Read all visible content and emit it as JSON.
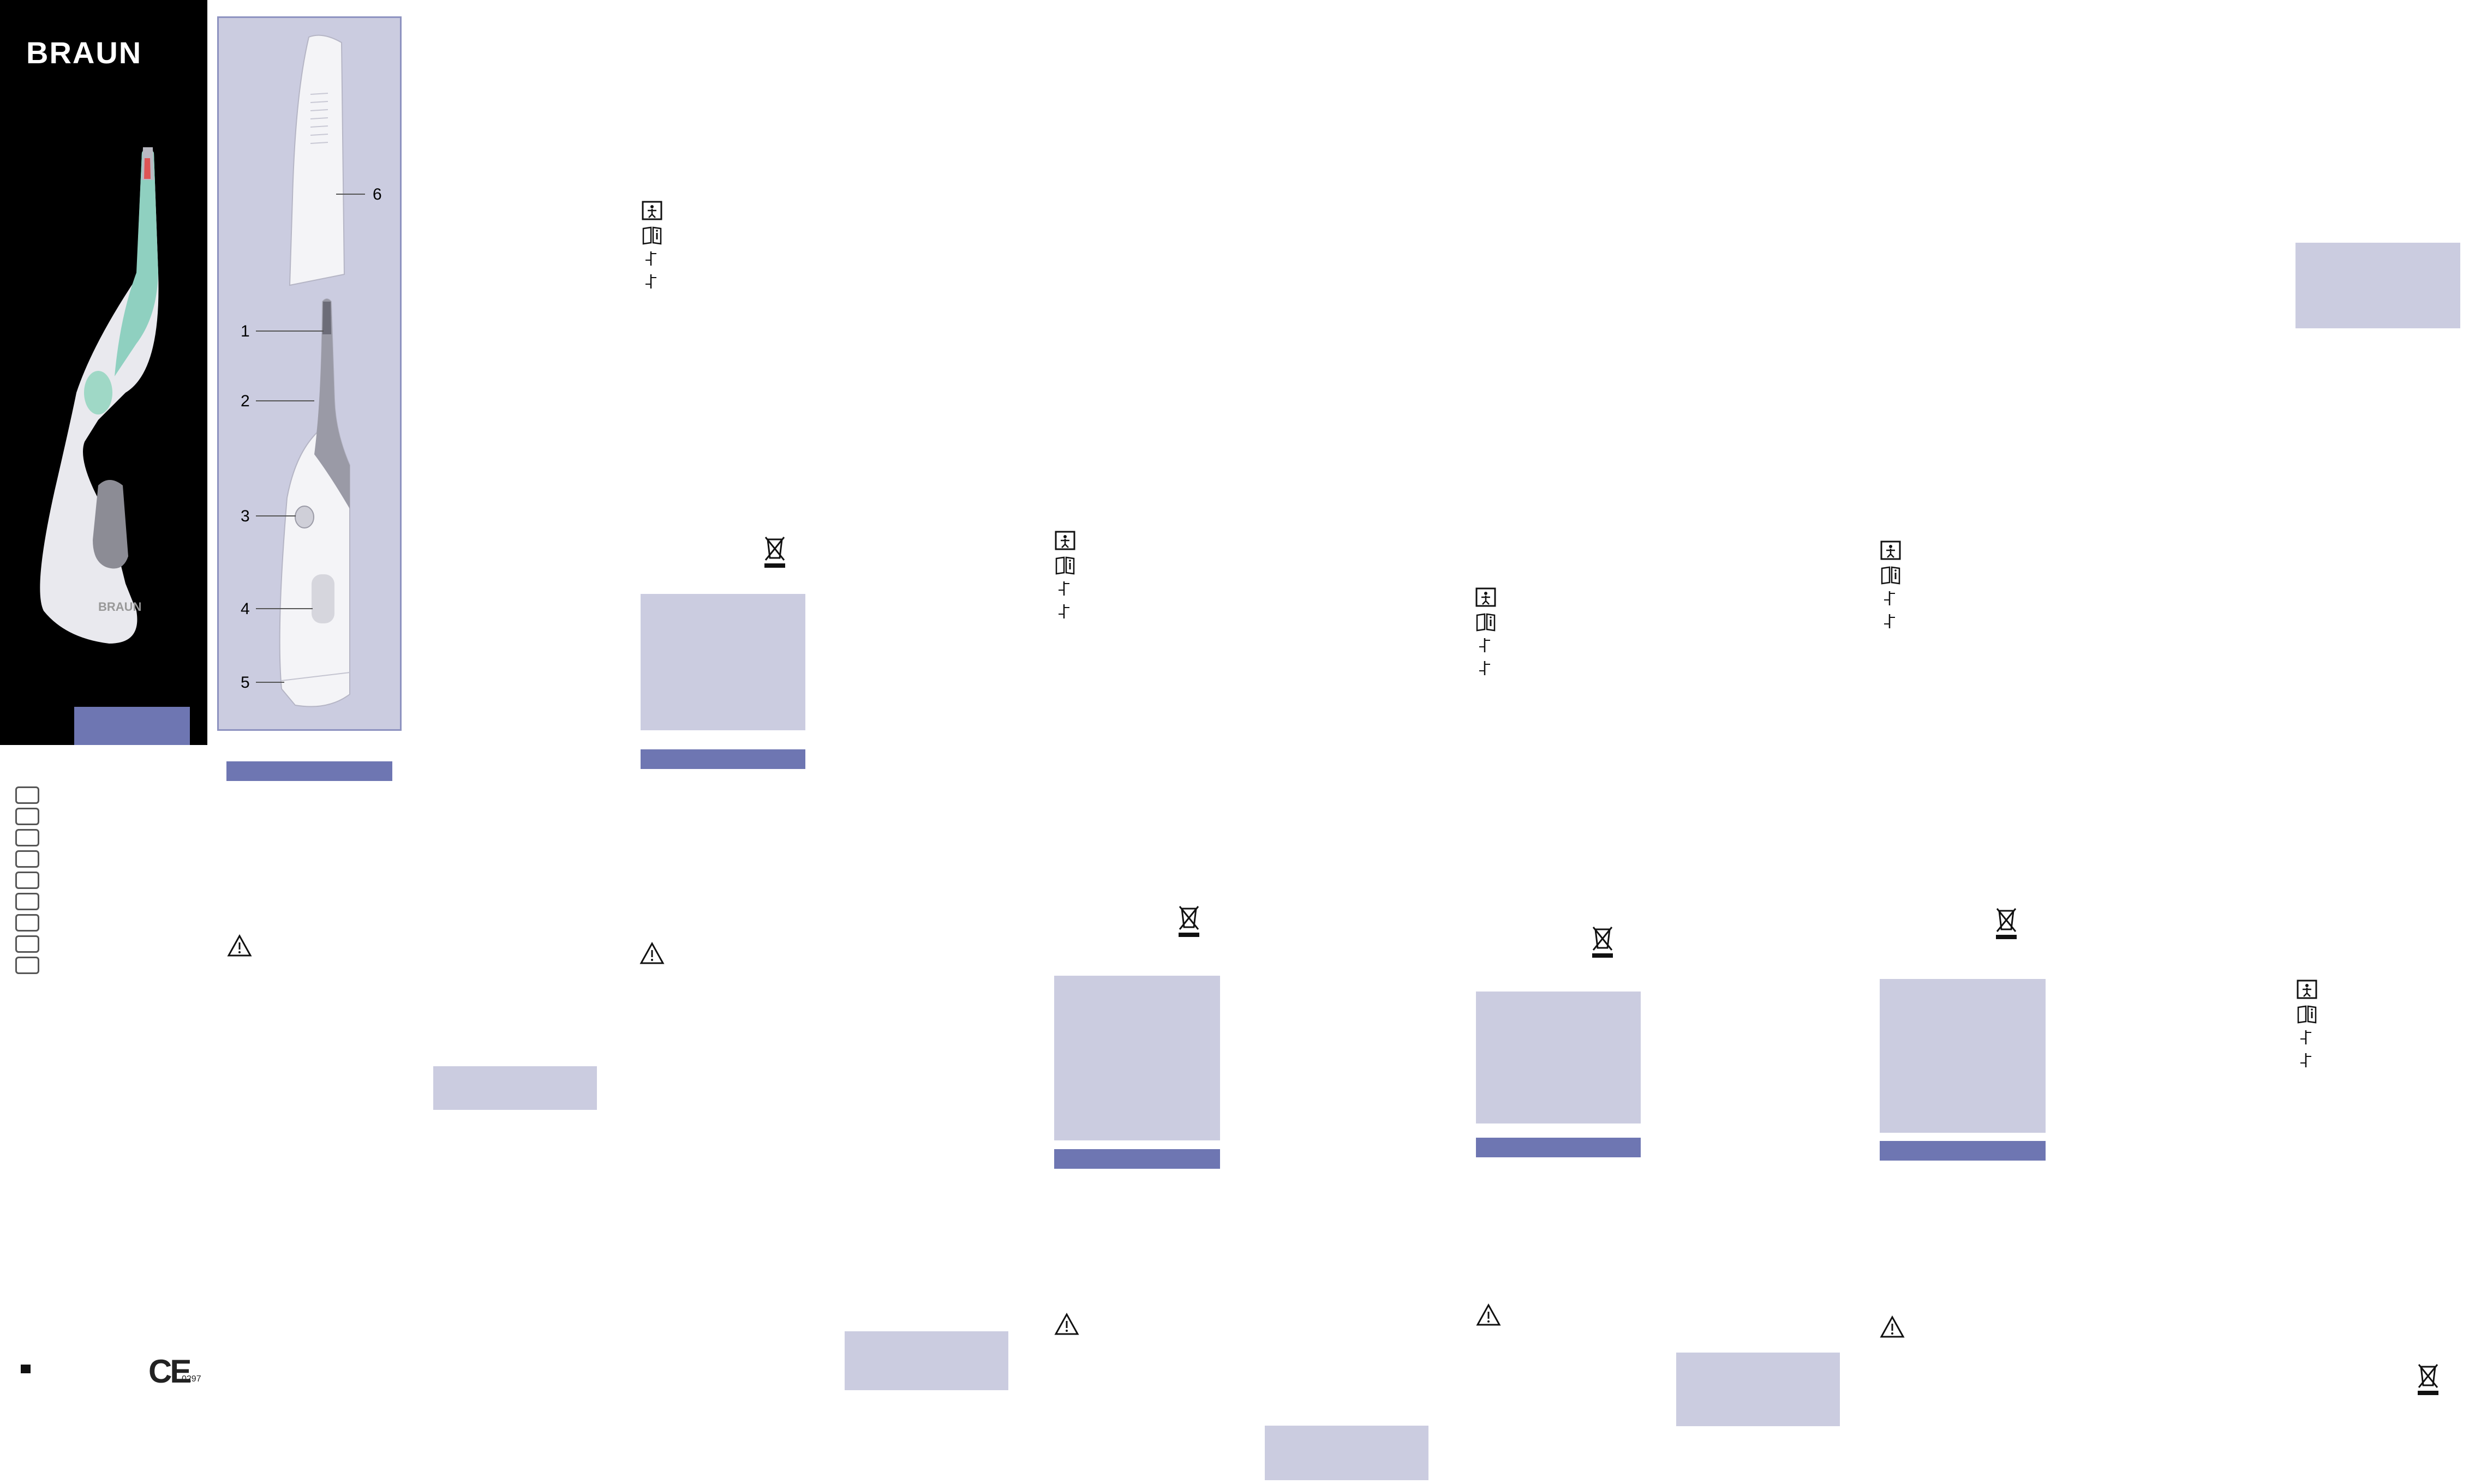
{
  "cover": {
    "brand": "BRAUN",
    "device_brand": "BRAUN"
  },
  "diagram": {
    "parts": [
      "1",
      "2",
      "3",
      "4",
      "5",
      "6"
    ]
  },
  "footer": {
    "ce_mark": "CE",
    "notified_body": "0297"
  },
  "icons": {
    "symbols": [
      "applied-part-type-bf-icon",
      "consult-instructions-icon",
      "temperature-limit-icon",
      "temperature-limit-icon"
    ],
    "warning": "warning-triangle-icon",
    "weee": "crossed-bin-icon"
  },
  "colors": {
    "panel_light": "#cbcce0",
    "panel_dark": "#6e76b2",
    "cover_bg": "#000000",
    "accent_teal": "#8fd0c0"
  }
}
